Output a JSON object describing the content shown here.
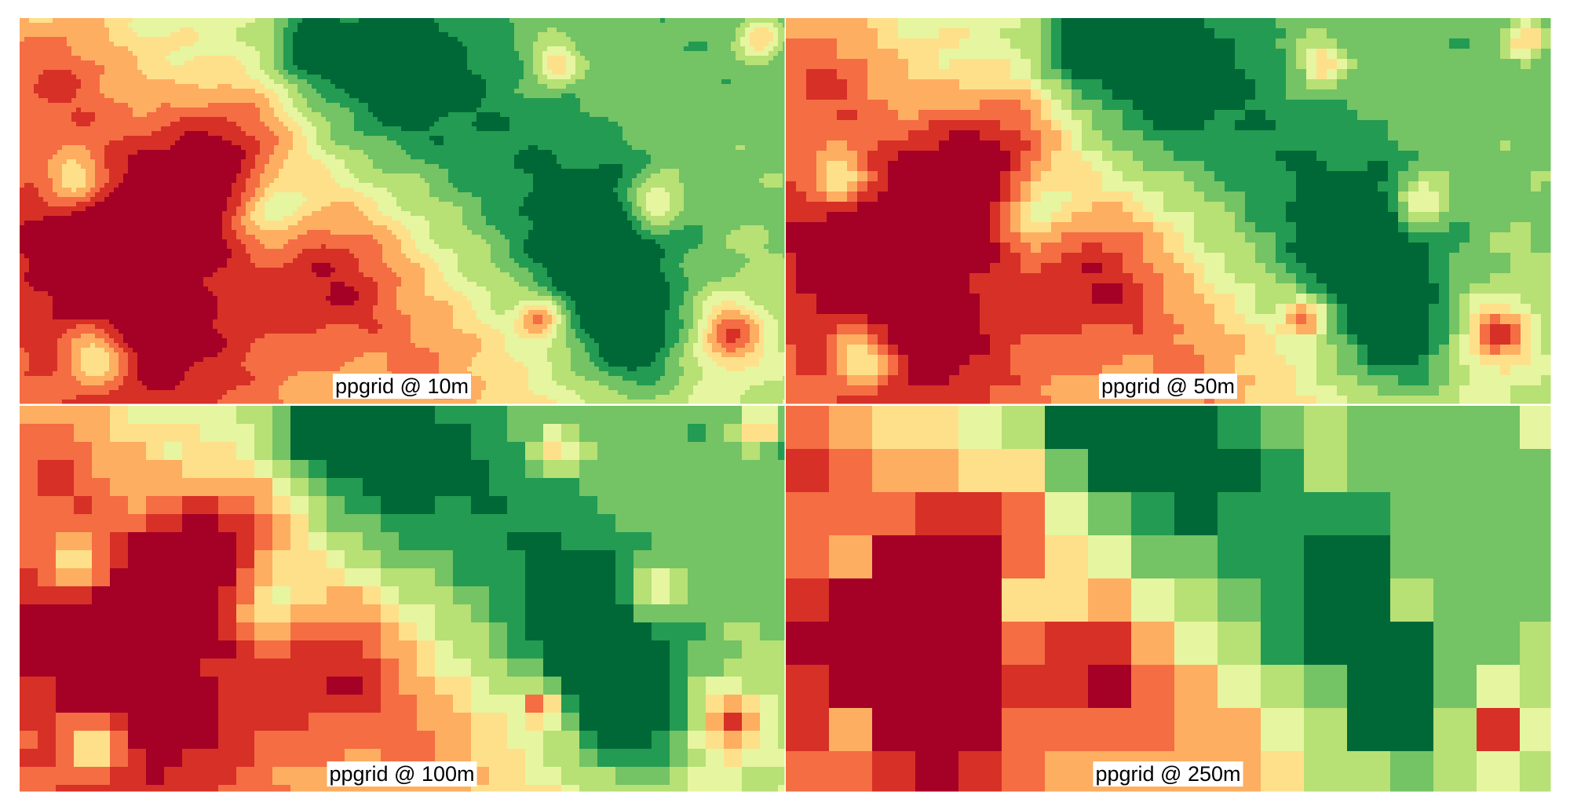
{
  "panels": [
    {
      "label": "ppgrid @ 10m"
    },
    {
      "label": "ppgrid @ 50m"
    },
    {
      "label": "ppgrid @ 100m"
    },
    {
      "label": "ppgrid @ 250m"
    }
  ]
}
